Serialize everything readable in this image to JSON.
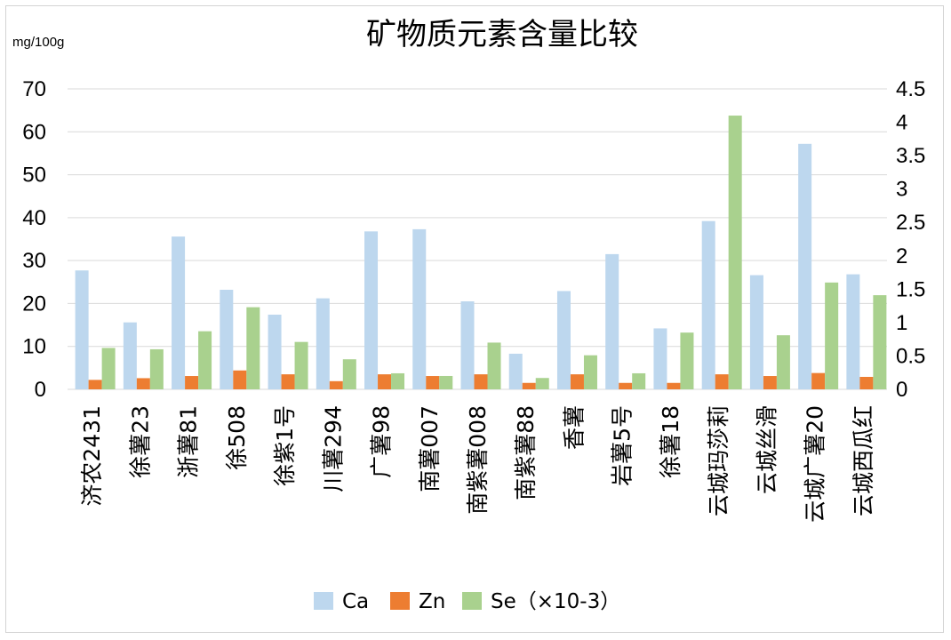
{
  "chart_data": {
    "type": "bar",
    "title": "矿物质元素含量比较",
    "y_unit_label": "mg/100g",
    "categories": [
      "济农2431",
      "徐薯23",
      "浙薯81",
      "徐508",
      "徐紫1号",
      "川薯294",
      "广薯98",
      "南薯007",
      "南紫薯008",
      "南紫薯88",
      "香薯",
      "岩薯5号",
      "徐薯18",
      "云城玛莎莉",
      "云城丝滑",
      "云城广薯20",
      "云城西瓜红"
    ],
    "left_axis": {
      "ylim": [
        0,
        70
      ],
      "ticks": [
        "0",
        "10",
        "20",
        "30",
        "40",
        "50",
        "60",
        "70"
      ]
    },
    "right_axis": {
      "ylim": [
        0,
        4.5
      ],
      "ticks": [
        "0",
        "0.5",
        "1",
        "1.5",
        "2",
        "2.5",
        "3",
        "3.5",
        "4",
        "4.5"
      ]
    },
    "grid": true,
    "legend_position": "bottom",
    "series": [
      {
        "name": "Ca",
        "axis": "left",
        "color": "#bdd7ee",
        "values": [
          27.7,
          15.6,
          35.6,
          23.2,
          17.4,
          21.2,
          36.8,
          37.3,
          20.5,
          8.3,
          22.9,
          31.5,
          14.2,
          39.2,
          26.6,
          57.2,
          26.8
        ]
      },
      {
        "name": "Zn",
        "axis": "left",
        "color": "#ed7d31",
        "values": [
          2.2,
          2.6,
          3.1,
          4.4,
          3.5,
          1.9,
          3.5,
          3.1,
          3.5,
          1.5,
          3.5,
          1.5,
          1.5,
          3.5,
          3.1,
          3.8,
          2.9
        ]
      },
      {
        "name": "Se（×10-3）",
        "axis": "right",
        "color": "#a9d18e",
        "values": [
          0.62,
          0.6,
          0.87,
          1.23,
          0.71,
          0.45,
          0.24,
          0.2,
          0.7,
          0.17,
          0.51,
          0.24,
          0.85,
          4.1,
          0.81,
          1.6,
          1.41
        ]
      }
    ]
  }
}
